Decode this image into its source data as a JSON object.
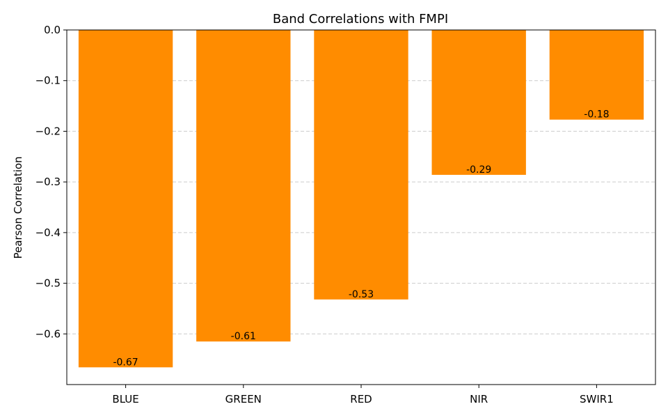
{
  "chart_data": {
    "type": "bar",
    "title": "Band Correlations with FMPI",
    "xlabel": "",
    "ylabel": "Pearson Correlation",
    "categories": [
      "BLUE",
      "GREEN",
      "RED",
      "NIR",
      "SWIR1"
    ],
    "values": [
      -0.666,
      -0.615,
      -0.532,
      -0.286,
      -0.177
    ],
    "value_labels": [
      "-0.67",
      "-0.61",
      "-0.53",
      "-0.29",
      "-0.18"
    ],
    "ylim": [
      -0.7,
      0.0
    ],
    "yticks": [
      0.0,
      -0.1,
      -0.2,
      -0.3,
      -0.4,
      -0.5,
      -0.6
    ],
    "ytick_labels": [
      "0.0",
      "−0.1",
      "−0.2",
      "−0.3",
      "−0.4",
      "−0.5",
      "−0.6"
    ],
    "grid": "y-dashed",
    "bar_color": "#ff8c00",
    "grid_color": "#cccccc"
  }
}
